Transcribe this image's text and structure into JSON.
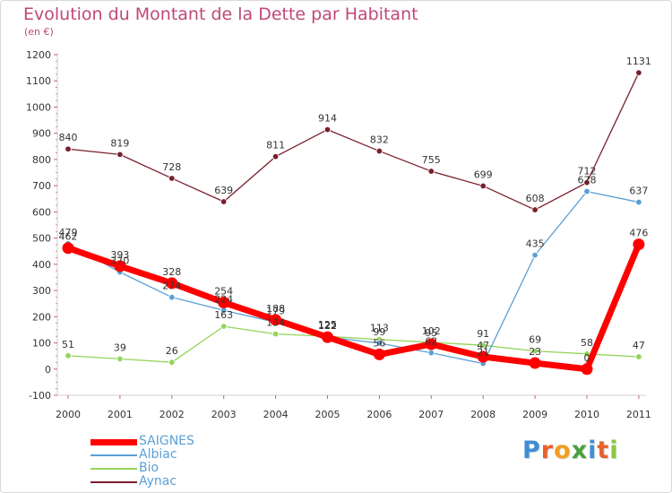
{
  "chart_data": {
    "type": "line",
    "title": "Evolution du Montant de la Dette par Habitant",
    "subtitle": "(en €)",
    "xlabel": "",
    "ylabel": "",
    "x": [
      "2000",
      "2001",
      "2002",
      "2003",
      "2004",
      "2005",
      "2006",
      "2007",
      "2008",
      "2009",
      "2010",
      "2011"
    ],
    "ylim": [
      -100,
      1200
    ],
    "yticks": [
      "-100",
      "0",
      "100",
      "200",
      "300",
      "400",
      "500",
      "600",
      "700",
      "800",
      "900",
      "1000",
      "1100",
      "1200"
    ],
    "grid": false,
    "legend_position": "bottom-left",
    "series": [
      {
        "name": "Aynac",
        "color": "#7a1f2b",
        "values": [
          840,
          819,
          728,
          639,
          811,
          914,
          832,
          755,
          699,
          608,
          712,
          1131
        ],
        "labels": [
          "840",
          "819",
          "728",
          "639",
          "811",
          "914",
          "832",
          "755",
          "699",
          "608",
          "712",
          "1131"
        ]
      },
      {
        "name": "Bio",
        "color": "#93d45a",
        "values": [
          51,
          39,
          26,
          163,
          134,
          125,
          113,
          102,
          91,
          69,
          58,
          47
        ],
        "labels": [
          "51",
          "39",
          "26",
          "163",
          "134",
          "125",
          "113",
          "102",
          "91",
          "69",
          "58",
          "47"
        ]
      },
      {
        "name": "Albiac",
        "color": "#5a9fd4",
        "values": [
          479,
          370,
          274,
          224,
          179,
          122,
          99,
          62,
          21,
          435,
          678,
          637
        ],
        "labels": [
          "479",
          "370",
          "274",
          "224",
          "179",
          "122",
          "99",
          "62",
          "21",
          "435",
          "678",
          "637"
        ]
      },
      {
        "name": "SAIGNES",
        "color": "#ff0000",
        "values": [
          462,
          393,
          328,
          254,
          188,
          122,
          56,
          95,
          47,
          23,
          0,
          476
        ],
        "labels": [
          "462",
          "393",
          "328",
          "254",
          "188",
          "122",
          "56",
          "95",
          "47",
          "23",
          "0",
          "476"
        ]
      }
    ],
    "legend": [
      "SAIGNES",
      "Albiac",
      "Bio",
      "Aynac"
    ]
  },
  "brand": {
    "letters": [
      "P",
      "r",
      "o",
      "x",
      "i",
      "t",
      "i"
    ],
    "colors": [
      "#3e8ed6",
      "#e8612c",
      "#f0a020",
      "#4aa03c",
      "#3e8ed6",
      "#e8612c",
      "#8cc63f"
    ]
  }
}
